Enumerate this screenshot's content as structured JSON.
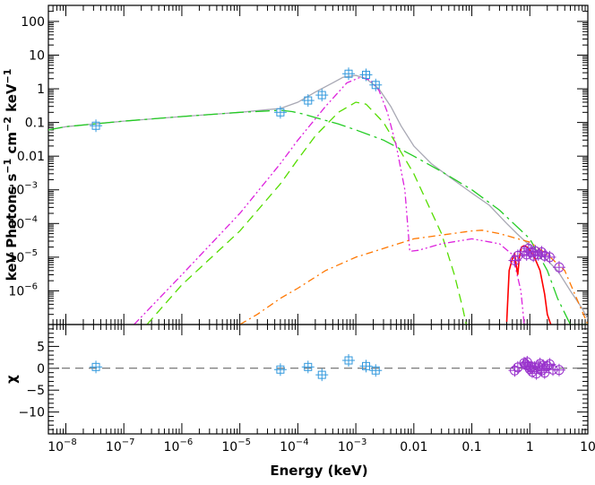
{
  "chart_data": [
    {
      "type": "line",
      "panel": "spectrum",
      "title": "",
      "xlabel": "Energy (keV)",
      "ylabel": "keV Photons s^-1 cm^-2 keV^-1",
      "xscale": "log",
      "yscale": "log",
      "xlim": [
        5e-09,
        10
      ],
      "ylim": [
        1e-07,
        300
      ],
      "xticks": [
        {
          "v": 1e-08,
          "label": "10",
          "exp": "−8"
        },
        {
          "v": 1e-07,
          "label": "10",
          "exp": "−7"
        },
        {
          "v": 1e-06,
          "label": "10",
          "exp": "−6"
        },
        {
          "v": 1e-05,
          "label": "10",
          "exp": "−5"
        },
        {
          "v": 0.0001,
          "label": "10",
          "exp": "−4"
        },
        {
          "v": 0.001,
          "label": "10",
          "exp": "−3"
        },
        {
          "v": 0.01,
          "label": "0.01",
          "exp": ""
        },
        {
          "v": 0.1,
          "label": "0.1",
          "exp": ""
        },
        {
          "v": 1,
          "label": "1",
          "exp": ""
        },
        {
          "v": 10,
          "label": "10",
          "exp": ""
        }
      ],
      "yticks": [
        {
          "v": 1e-06,
          "label": "10",
          "exp": "−6"
        },
        {
          "v": 1e-05,
          "label": "10",
          "exp": "−5"
        },
        {
          "v": 0.0001,
          "label": "10",
          "exp": "−4"
        },
        {
          "v": 0.001,
          "label": "10",
          "exp": "−3"
        },
        {
          "v": 0.01,
          "label": "0.01",
          "exp": ""
        },
        {
          "v": 0.1,
          "label": "0.1",
          "exp": ""
        },
        {
          "v": 1,
          "label": "1",
          "exp": ""
        },
        {
          "v": 10,
          "label": "10",
          "exp": ""
        },
        {
          "v": 100,
          "label": "100",
          "exp": ""
        }
      ],
      "series": [
        {
          "style": "solid",
          "color": "#a8a8b4",
          "x": [
            5e-09,
            1e-08,
            1e-07,
            1e-06,
            1e-05,
            3e-05,
            5e-05,
            0.0001,
            0.0002,
            0.0004,
            0.0006,
            0.001,
            0.0015,
            0.0025,
            0.004,
            0.006,
            0.01,
            0.02,
            0.04,
            0.1,
            0.2,
            0.4,
            0.6,
            1,
            1.5,
            2,
            3,
            5,
            8,
            10
          ],
          "y": [
            0.06,
            0.075,
            0.11,
            0.15,
            0.2,
            0.24,
            0.26,
            0.4,
            0.8,
            1.5,
            2.2,
            2.5,
            2.0,
            1.0,
            0.3,
            0.08,
            0.02,
            0.006,
            0.0025,
            0.0008,
            0.00035,
            0.0001,
            5e-05,
            2.2e-05,
            1.3e-05,
            8e-06,
            4e-06,
            1e-06,
            3e-07,
            1.5e-07
          ]
        },
        {
          "style": "longdashdot",
          "color": "#22cc22",
          "x": [
            5e-09,
            1e-08,
            1e-07,
            1e-06,
            1e-05,
            3e-05,
            5e-05,
            8e-05,
            0.00012,
            0.0002,
            0.0005,
            0.001,
            0.003,
            0.01,
            0.03,
            0.1,
            0.3,
            1,
            2,
            3,
            5,
            10
          ],
          "y": [
            0.06,
            0.075,
            0.11,
            0.15,
            0.2,
            0.22,
            0.23,
            0.21,
            0.18,
            0.14,
            0.09,
            0.06,
            0.03,
            0.01,
            0.0035,
            0.001,
            0.00025,
            3.5e-05,
            4e-06,
            6e-07,
            1e-07,
            1e-07
          ]
        },
        {
          "style": "dashed",
          "color": "#55dd00",
          "x": [
            2.5e-07,
            1e-06,
            1e-05,
            5e-05,
            0.0001,
            0.0002,
            0.0005,
            0.001,
            0.0015,
            0.003,
            0.01,
            0.03,
            0.05,
            0.07,
            0.08
          ],
          "y": [
            1e-07,
            1.5e-06,
            6e-05,
            0.0015,
            0.008,
            0.04,
            0.2,
            0.4,
            0.35,
            0.1,
            0.003,
            5e-05,
            3e-06,
            3e-07,
            1e-07
          ]
        },
        {
          "style": "dashdotdot",
          "color": "#dd22dd",
          "x": [
            1.5e-07,
            1e-06,
            1e-05,
            5e-05,
            0.0001,
            0.0003,
            0.0007,
            0.0012,
            0.0018,
            0.0025,
            0.0035,
            0.005,
            0.007,
            0.0085,
            0.012,
            0.03,
            0.1,
            0.3,
            0.5,
            0.7,
            0.8
          ],
          "y": [
            1e-07,
            3e-06,
            0.0002,
            0.006,
            0.03,
            0.3,
            1.5,
            2.2,
            1.8,
            0.9,
            0.2,
            0.02,
            0.001,
            1.5e-05,
            1.6e-05,
            2.5e-05,
            3.5e-05,
            2.5e-05,
            1.2e-05,
            1e-06,
            1e-07
          ]
        },
        {
          "style": "dashdot",
          "color": "#ff7700",
          "x": [
            1e-05,
            2e-05,
            5e-05,
            0.0001,
            0.0003,
            0.001,
            0.01,
            0.1,
            0.15,
            0.3,
            1,
            2,
            4,
            10
          ],
          "y": [
            1e-07,
            2e-07,
            6e-07,
            1.2e-06,
            4e-06,
            1e-05,
            3.5e-05,
            6e-05,
            6.3e-05,
            5e-05,
            2.8e-05,
            1.2e-05,
            4e-06,
            1e-07
          ]
        },
        {
          "style": "solid",
          "color": "#ff0000",
          "x": [
            0.4,
            0.44,
            0.5,
            0.55,
            0.58,
            0.62,
            0.66,
            0.72,
            0.8,
            0.9,
            1.0,
            1.2,
            1.5,
            1.8,
            2.0,
            2.3
          ],
          "y": [
            1.2e-07,
            4e-06,
            9e-06,
            1.2e-05,
            6e-06,
            3e-06,
            1e-05,
            2e-05,
            2.2e-05,
            2e-05,
            1.6e-05,
            1e-05,
            4e-06,
            8e-07,
            2e-07,
            1e-07
          ]
        }
      ],
      "points_uvot": {
        "color": "#3399dd",
        "x": [
          3.3e-08,
          5e-05,
          0.00015,
          0.00026,
          0.00075,
          0.0015,
          0.0022
        ],
        "y": [
          0.08,
          0.2,
          0.45,
          0.65,
          2.8,
          2.6,
          1.3
        ]
      },
      "points_xrt": {
        "color": "#9933cc",
        "x": [
          0.55,
          0.62,
          0.8,
          0.88,
          0.95,
          1.05,
          1.15,
          1.25,
          1.4,
          1.6,
          1.8,
          2.2,
          3.2
        ],
        "y": [
          8e-06,
          1.1e-05,
          1.5e-05,
          1.2e-05,
          1.8e-05,
          1.4e-05,
          1.1e-05,
          1.5e-05,
          1.2e-05,
          1.4e-05,
          1.1e-05,
          1e-05,
          5e-06
        ]
      }
    },
    {
      "type": "scatter",
      "panel": "residuals",
      "ylabel": "χ",
      "xlabel": "Energy (keV)",
      "xscale": "log",
      "xlim": [
        5e-09,
        10
      ],
      "ylim": [
        -15,
        10
      ],
      "yticks": [
        {
          "v": -10,
          "label": "−10"
        },
        {
          "v": -5,
          "label": "−5"
        },
        {
          "v": 0,
          "label": "0"
        },
        {
          "v": 5,
          "label": "5"
        }
      ],
      "zero_line": "dashed",
      "points_uvot": {
        "color": "#3399dd",
        "x": [
          3.3e-08,
          5e-05,
          0.00015,
          0.00026,
          0.00075,
          0.0015,
          0.0022
        ],
        "y": [
          0.3,
          -0.3,
          0.3,
          -1.5,
          1.8,
          0.5,
          -0.5
        ]
      },
      "points_xrt": {
        "color": "#9933cc",
        "x": [
          0.55,
          0.62,
          0.8,
          0.85,
          0.9,
          0.95,
          1.0,
          1.05,
          1.1,
          1.2,
          1.3,
          1.4,
          1.5,
          1.6,
          1.7,
          1.8,
          2.0,
          2.2,
          2.5,
          3.2
        ],
        "y": [
          -0.5,
          0.2,
          1.2,
          0.8,
          1.4,
          0.5,
          -0.2,
          0.3,
          -0.8,
          0.2,
          -1.2,
          0.4,
          1.0,
          -0.5,
          0.6,
          -1.0,
          0.5,
          0.9,
          -0.3,
          -0.4
        ]
      }
    }
  ]
}
